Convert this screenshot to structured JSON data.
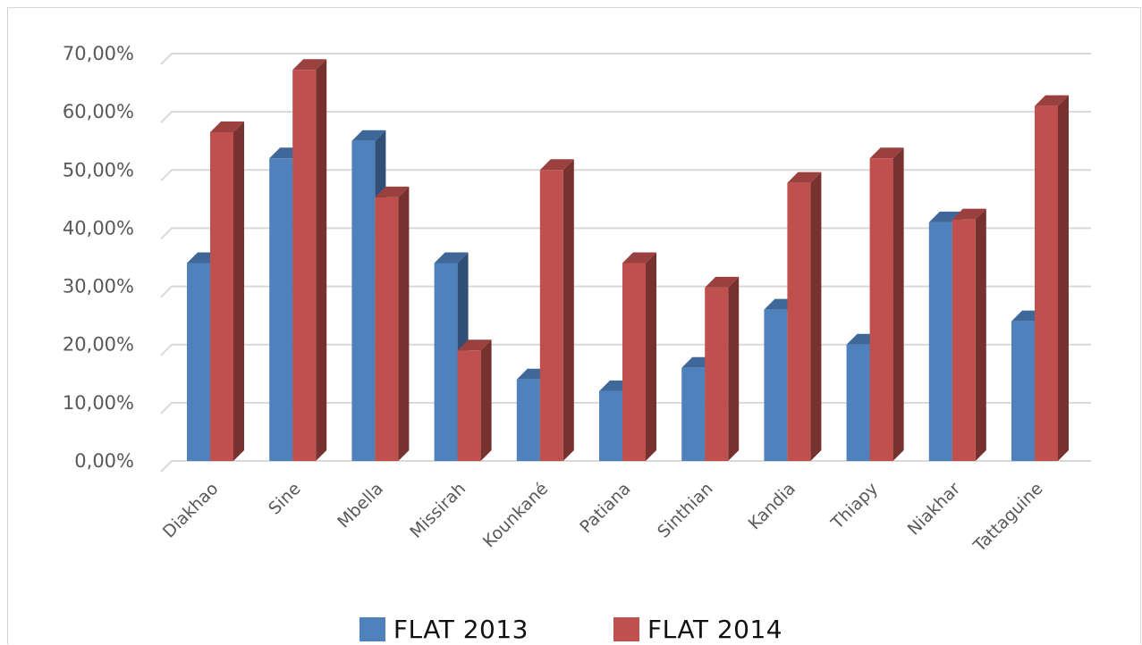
{
  "chart_data": {
    "type": "bar",
    "title": "",
    "xlabel": "",
    "ylabel": "",
    "categories": [
      "Diakhao",
      "Sine",
      "Mbella",
      "Missirah",
      "Kounkané",
      "Patiana",
      "Sinthian",
      "Kandia",
      "Thiapy",
      "Niakhar",
      "Tattaguine"
    ],
    "series": [
      {
        "name": "FLAT 2013",
        "color": "#4F81BD",
        "values": [
          34,
          52,
          55,
          34,
          14,
          12,
          16,
          26,
          20,
          41,
          24
        ]
      },
      {
        "name": "FLAT 2014",
        "color": "#C0504D",
        "values": [
          56.5,
          67.2,
          45.3,
          19,
          50,
          34,
          29.8,
          47.8,
          52,
          41.5,
          61
        ]
      }
    ],
    "ylim": [
      0,
      70
    ],
    "yticks": [
      "0,00%",
      "10,00%",
      "20,00%",
      "30,00%",
      "40,00%",
      "50,00%",
      "60,00%",
      "70,00%"
    ],
    "grid": true,
    "legend_position": "bottom",
    "style": "3d-clustered-column"
  }
}
